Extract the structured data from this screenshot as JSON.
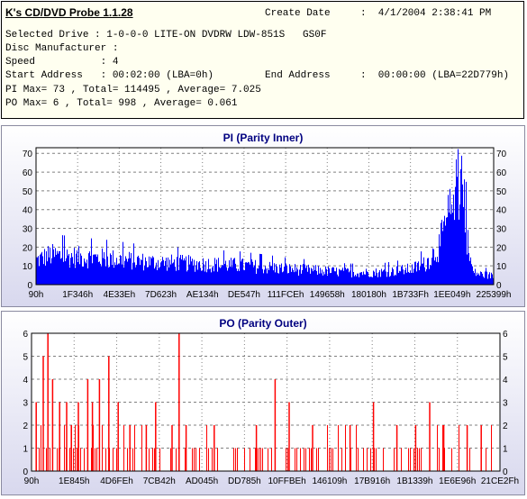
{
  "info": {
    "app_title": "K's CD/DVD Probe 1.1.28",
    "create_date_label": "Create Date",
    "create_date_value": ":  4/1/2004 2:38:41 PM",
    "selected_drive": "Selected Drive : 1-0-0-0 LITE-ON DVDRW LDW-851S   GS0F",
    "disc_manufacturer": "Disc Manufacturer :",
    "speed": "Speed           : 4",
    "start_address": "Start Address   : 00:02:00 (LBA=0h)",
    "end_address_label": "End Address",
    "end_address_value": ":  00:00:00 (LBA=22D779h)",
    "pi_summary": "PI Max= 73 , Total= 114495 , Average= 7.025",
    "po_summary": "PO Max= 6 , Total= 998 , Average= 0.061"
  },
  "colors": {
    "series": "#0000ff",
    "po_series": "#ff0000",
    "title": "#000080",
    "grid": "#808080"
  },
  "chart_data": [
    {
      "type": "bar",
      "title": "PI (Parity Inner)",
      "ylim": [
        0,
        73
      ],
      "yticks": [
        0,
        10,
        20,
        30,
        40,
        50,
        60,
        70
      ],
      "x_tick_labels": [
        "90h",
        "1F346h",
        "4E33Eh",
        "7D623h",
        "AE134h",
        "DE547h",
        "111FCEh",
        "149658h",
        "180180h",
        "1B733Fh",
        "1EE049h",
        "225399h"
      ],
      "grid": true,
      "profile_x": [
        0,
        0.03,
        0.08,
        0.15,
        0.25,
        0.35,
        0.45,
        0.55,
        0.62,
        0.68,
        0.75,
        0.79,
        0.82,
        0.85,
        0.88,
        0.895,
        0.91,
        0.925,
        0.935,
        0.945,
        0.955,
        0.97,
        1.0
      ],
      "profile_pi": [
        14,
        17,
        16,
        15,
        13,
        12,
        11,
        9,
        8,
        7,
        7,
        8,
        9,
        12,
        22,
        35,
        45,
        62,
        45,
        18,
        7,
        6,
        5
      ]
    },
    {
      "type": "bar",
      "title": "PO (Parity Outer)",
      "ylim": [
        0,
        6
      ],
      "yticks": [
        0,
        1,
        2,
        3,
        4,
        5,
        6
      ],
      "x_tick_labels": [
        "90h",
        "1E845h",
        "4D6FEh",
        "7CB42h",
        "AD045h",
        "DD785h",
        "10FFBEh",
        "146109h",
        "17B916h",
        "1B1339h",
        "1E6E96h",
        "21CE2Fh"
      ],
      "grid": true,
      "spikes": [
        {
          "x": 0.01,
          "y": 3
        },
        {
          "x": 0.025,
          "y": 5
        },
        {
          "x": 0.035,
          "y": 6
        },
        {
          "x": 0.045,
          "y": 4
        },
        {
          "x": 0.06,
          "y": 3
        },
        {
          "x": 0.075,
          "y": 3
        },
        {
          "x": 0.085,
          "y": 2
        },
        {
          "x": 0.1,
          "y": 3
        },
        {
          "x": 0.12,
          "y": 4
        },
        {
          "x": 0.13,
          "y": 3
        },
        {
          "x": 0.145,
          "y": 4
        },
        {
          "x": 0.165,
          "y": 5
        },
        {
          "x": 0.185,
          "y": 3
        },
        {
          "x": 0.21,
          "y": 2
        },
        {
          "x": 0.245,
          "y": 2
        },
        {
          "x": 0.265,
          "y": 3
        },
        {
          "x": 0.3,
          "y": 2
        },
        {
          "x": 0.315,
          "y": 6
        },
        {
          "x": 0.33,
          "y": 2
        },
        {
          "x": 0.39,
          "y": 2
        },
        {
          "x": 0.48,
          "y": 2
        },
        {
          "x": 0.52,
          "y": 4
        },
        {
          "x": 0.55,
          "y": 3
        },
        {
          "x": 0.6,
          "y": 2
        },
        {
          "x": 0.68,
          "y": 2
        },
        {
          "x": 0.73,
          "y": 3
        },
        {
          "x": 0.78,
          "y": 2
        },
        {
          "x": 0.82,
          "y": 2
        },
        {
          "x": 0.85,
          "y": 3
        },
        {
          "x": 0.88,
          "y": 2
        },
        {
          "x": 0.93,
          "y": 2
        },
        {
          "x": 0.96,
          "y": 2
        }
      ],
      "ones_density": 0.33,
      "twos_density": 0.06
    }
  ]
}
